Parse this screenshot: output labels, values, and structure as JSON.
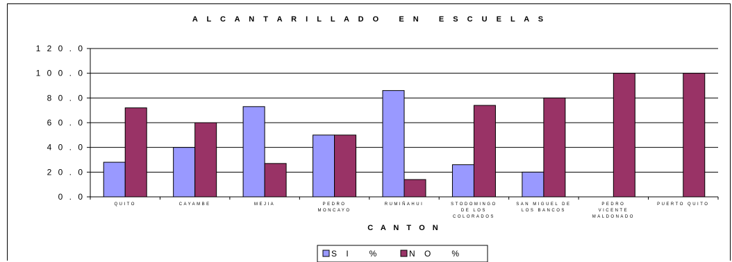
{
  "chart_data": {
    "type": "bar",
    "title": "A L C A N T A R I L L A D O   E N   E S C U E L A S",
    "xlabel": "C A N T O N",
    "ylabel": "",
    "ylim": [
      0,
      120
    ],
    "yticks": [
      0,
      20,
      40,
      60,
      80,
      100,
      120
    ],
    "ytick_labels": [
      "0 . 0",
      "2 0 . 0",
      "4 0 . 0",
      "6 0 . 0",
      "8 0 . 0",
      "1 0 0 . 0",
      "1 2 0 . 0"
    ],
    "grid": true,
    "legend_position": "bottom",
    "categories": [
      [
        "QUITO"
      ],
      [
        "CAYAMBE"
      ],
      [
        "MEJIA"
      ],
      [
        "PEDRO",
        "MONCAYO"
      ],
      [
        "RUMIÑAHUI"
      ],
      [
        "STODOMINGO",
        "DE LOS",
        "COLORADOS"
      ],
      [
        "SAN MIGUEL DE",
        "LOS BANCOS"
      ],
      [
        "PEDRO",
        "VICENTE",
        "MALDONADO"
      ],
      [
        "PUERTO QUITO"
      ]
    ],
    "series": [
      {
        "name": "S I   %",
        "color": "#9999ff",
        "values": [
          28,
          40,
          73,
          50,
          86,
          26,
          20,
          0,
          0
        ]
      },
      {
        "name": "N O   %",
        "color": "#993366",
        "values": [
          72,
          60,
          27,
          50,
          14,
          74,
          80,
          100,
          100
        ]
      }
    ]
  }
}
